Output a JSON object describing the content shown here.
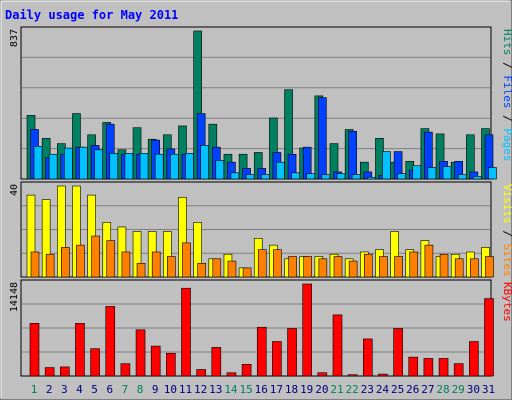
{
  "chart_data": [
    {
      "type": "bar",
      "panel": "hits-files-pages",
      "title": "Daily usage for May 2011",
      "max_label": "837",
      "legend": [
        {
          "word": "Pages",
          "color": "#00C0FF"
        },
        {
          "word": "Files",
          "color": "#0040FF"
        },
        {
          "word": "Hits",
          "color": "#008060"
        }
      ],
      "categories": [
        "1",
        "2",
        "3",
        "4",
        "5",
        "6",
        "7",
        "8",
        "9",
        "10",
        "11",
        "12",
        "13",
        "14",
        "15",
        "16",
        "17",
        "18",
        "19",
        "20",
        "21",
        "22",
        "23",
        "24",
        "25",
        "26",
        "27",
        "28",
        "29",
        "30",
        "31"
      ],
      "series": [
        {
          "name": "Hits",
          "color": "#008060",
          "values": [
            360,
            230,
            200,
            370,
            250,
            320,
            165,
            290,
            225,
            250,
            300,
            837,
            310,
            140,
            140,
            150,
            345,
            505,
            175,
            470,
            200,
            280,
            95,
            230,
            95,
            100,
            285,
            255,
            95,
            250,
            285
          ]
        },
        {
          "name": "Files",
          "color": "#0040FF",
          "values": [
            280,
            120,
            140,
            180,
            190,
            310,
            140,
            140,
            220,
            170,
            140,
            370,
            180,
            95,
            60,
            60,
            150,
            140,
            180,
            460,
            40,
            270,
            40,
            20,
            155,
            50,
            265,
            100,
            100,
            40,
            250
          ]
        },
        {
          "name": "Pages",
          "color": "#00C0FF",
          "values": [
            185,
            140,
            175,
            180,
            165,
            145,
            145,
            145,
            140,
            140,
            145,
            190,
            105,
            35,
            25,
            25,
            95,
            35,
            30,
            25,
            30,
            25,
            10,
            155,
            30,
            75,
            65,
            70,
            25,
            15,
            65
          ]
        }
      ],
      "ylim": [
        0,
        837
      ]
    },
    {
      "type": "bar",
      "panel": "visits-sites",
      "max_label": "40",
      "legend": [
        {
          "word": "Sites",
          "color": "#FF8000"
        },
        {
          "word": "Visits",
          "color": "#FFFF00"
        }
      ],
      "categories": [
        "1",
        "2",
        "3",
        "4",
        "5",
        "6",
        "7",
        "8",
        "9",
        "10",
        "11",
        "12",
        "13",
        "14",
        "15",
        "16",
        "17",
        "18",
        "19",
        "20",
        "21",
        "22",
        "23",
        "24",
        "25",
        "26",
        "27",
        "28",
        "29",
        "30",
        "31"
      ],
      "series": [
        {
          "name": "Visits",
          "color": "#FFFF00",
          "values": [
            36,
            34,
            40,
            40,
            36,
            24,
            22,
            20,
            20,
            20,
            35,
            24,
            8,
            10,
            4,
            17,
            14,
            8,
            9,
            9,
            10,
            8,
            11,
            12,
            20,
            12,
            16,
            9,
            10,
            11,
            13
          ]
        },
        {
          "name": "Sites",
          "color": "#FF8000",
          "values": [
            11,
            10,
            13,
            14,
            18,
            16,
            11,
            6,
            11,
            9,
            15,
            6,
            8,
            7,
            4,
            12,
            12,
            9,
            9,
            8,
            9,
            7,
            10,
            9,
            9,
            11,
            14,
            10,
            8,
            8,
            9
          ]
        }
      ],
      "ylim": [
        0,
        40
      ]
    },
    {
      "type": "bar",
      "panel": "kbytes",
      "max_label": "14148",
      "legend": [
        {
          "word": "KBytes",
          "color": "#FF0000"
        }
      ],
      "categories": [
        "1",
        "2",
        "3",
        "4",
        "5",
        "6",
        "7",
        "8",
        "9",
        "10",
        "11",
        "12",
        "13",
        "14",
        "15",
        "16",
        "17",
        "18",
        "19",
        "20",
        "21",
        "22",
        "23",
        "24",
        "25",
        "26",
        "27",
        "28",
        "29",
        "30",
        "31"
      ],
      "series": [
        {
          "name": "KBytes",
          "color": "#FF0000",
          "values": [
            8100,
            1300,
            1400,
            8100,
            4200,
            10700,
            1900,
            7100,
            4600,
            3500,
            13500,
            1000,
            4400,
            500,
            1800,
            7500,
            5300,
            7300,
            14148,
            500,
            9400,
            200,
            5700,
            300,
            7300,
            2900,
            2700,
            2700,
            1900,
            5300,
            11900
          ]
        }
      ],
      "ylim": [
        0,
        14148
      ]
    }
  ],
  "x_axis": {
    "labels": [
      "1",
      "2",
      "3",
      "4",
      "5",
      "6",
      "7",
      "8",
      "9",
      "10",
      "11",
      "12",
      "13",
      "14",
      "15",
      "16",
      "17",
      "18",
      "19",
      "20",
      "21",
      "22",
      "23",
      "24",
      "25",
      "26",
      "27",
      "28",
      "29",
      "30",
      "31"
    ],
    "weekend_days": [
      1,
      7,
      8,
      14,
      15,
      21,
      22,
      28,
      29
    ],
    "weekend_color": "#00805C",
    "weekday_color": "#000080"
  },
  "colors": {
    "frame_background": "#c0c0c0",
    "plot_background": "#c0c0c0",
    "title_color": "#0000ff",
    "grid": "#808080",
    "separator": "#000000"
  }
}
